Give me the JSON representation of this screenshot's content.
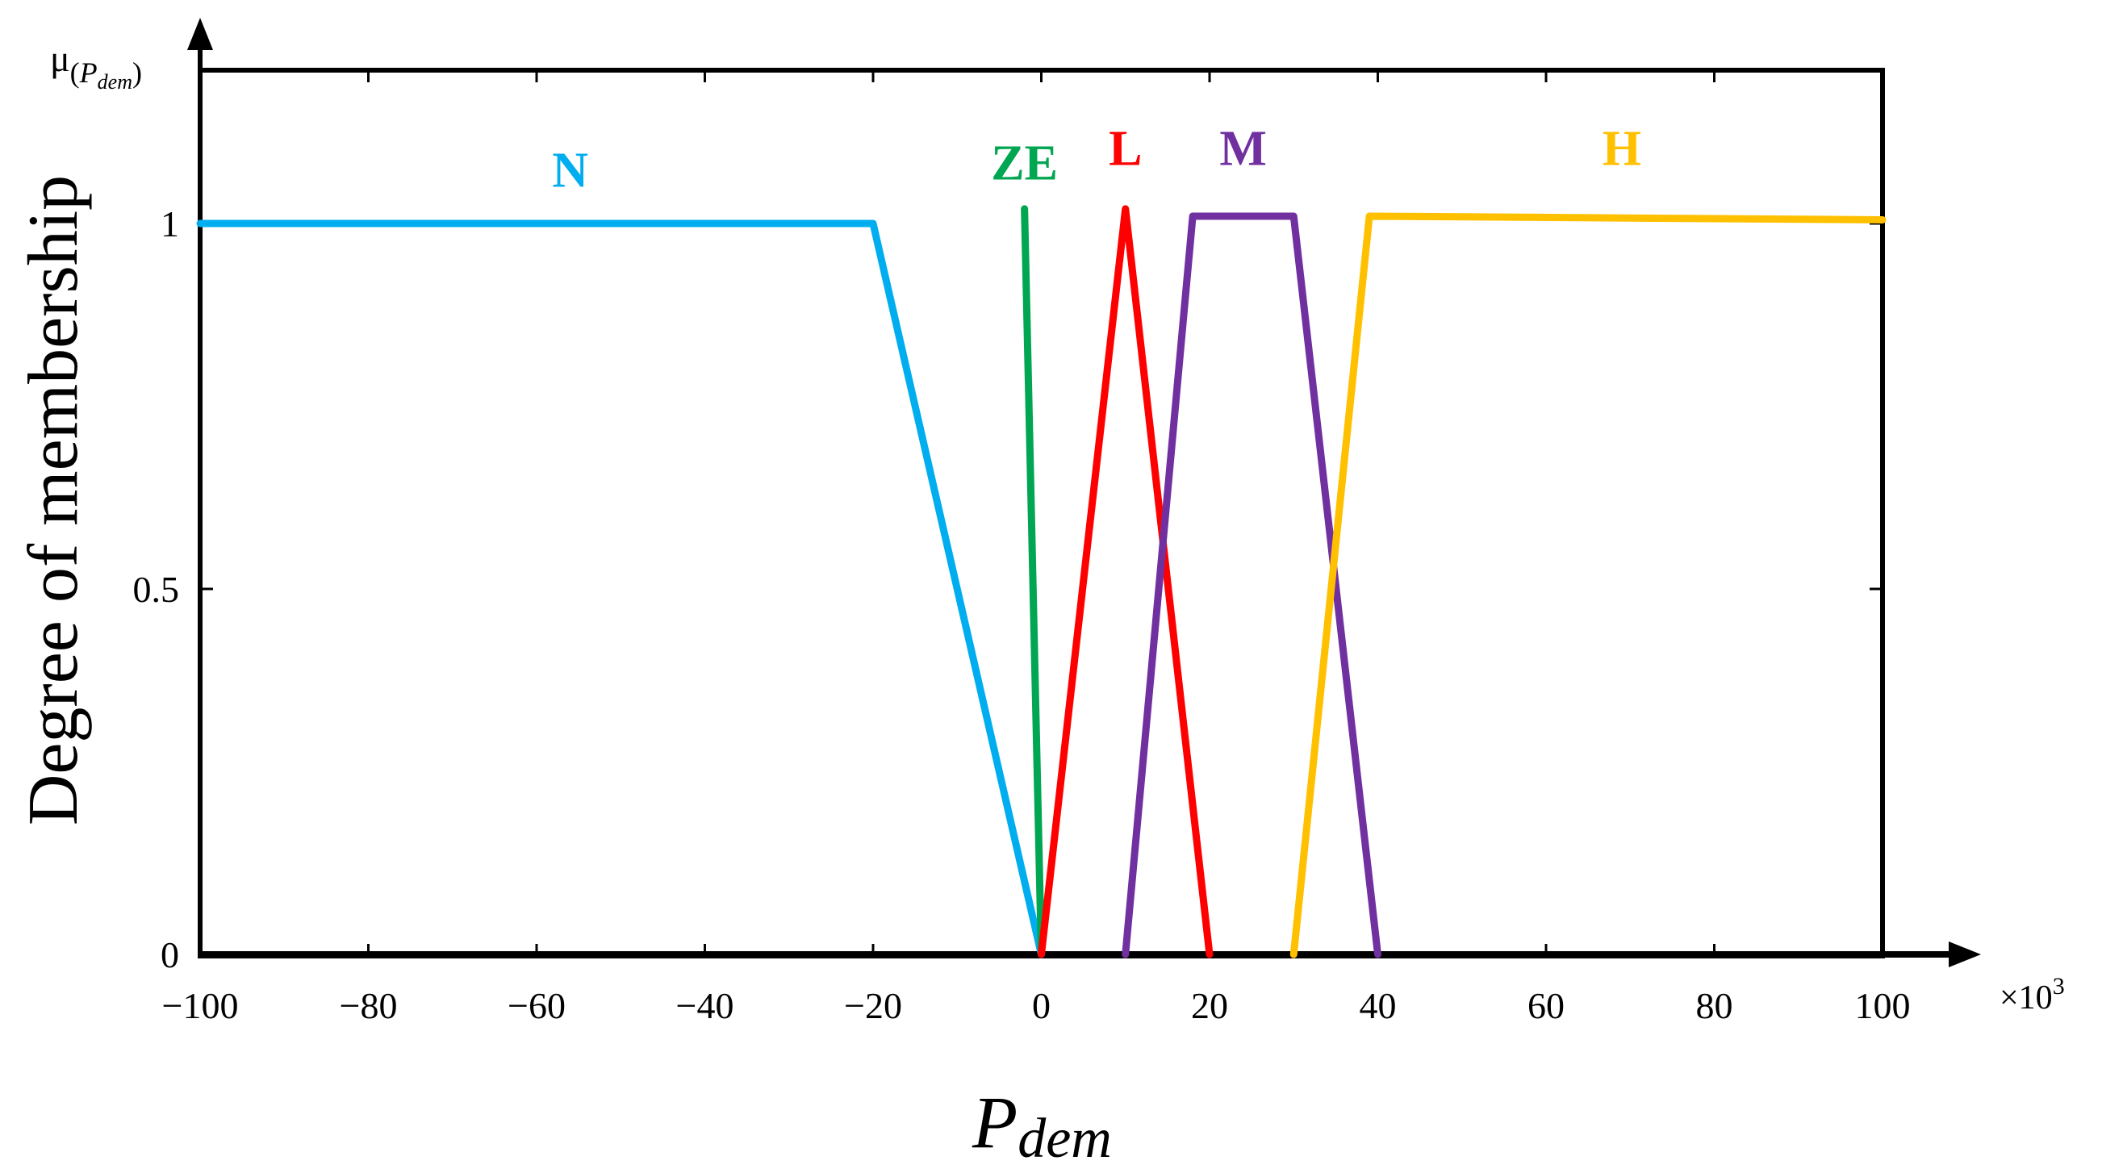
{
  "chart_data": {
    "type": "line",
    "title": "",
    "xlabel_base": "P",
    "xlabel_sub": "dem",
    "ylabel": "Degree of membership",
    "ylabel_top_mu": "μ",
    "ylabel_top_sub_open": "(",
    "ylabel_top_sub_p": "P",
    "ylabel_top_sub_dem": "dem",
    "ylabel_top_sub_close": ")",
    "x_multiplier_base": "×10",
    "x_multiplier_exp": "3",
    "xlim": [
      -100,
      100
    ],
    "ylim": [
      0,
      1
    ],
    "x_ticks": [
      -100,
      -80,
      -60,
      -40,
      -20,
      0,
      20,
      40,
      60,
      80,
      100
    ],
    "x_tick_labels": [
      "−100",
      "−80",
      "−60",
      "−40",
      "−20",
      "0",
      "20",
      "40",
      "60",
      "80",
      "100"
    ],
    "y_ticks": [
      0,
      0.5,
      1
    ],
    "y_tick_labels": [
      "0",
      "0.5",
      "1"
    ],
    "grid": false,
    "series": [
      {
        "name": "N",
        "color": "#00AEEF",
        "x": [
          -100,
          -20,
          0
        ],
        "y": [
          1,
          1,
          0
        ],
        "label_at": [
          -56,
          1.05
        ]
      },
      {
        "name": "ZE",
        "color": "#00A651",
        "x": [
          -2,
          0
        ],
        "y": [
          1.02,
          0
        ],
        "label_at": [
          -2,
          1.06
        ]
      },
      {
        "name": "L",
        "color": "#FF0000",
        "x": [
          0,
          10,
          20
        ],
        "y": [
          0,
          1.02,
          0
        ],
        "label_at": [
          10,
          1.08
        ]
      },
      {
        "name": "M",
        "color": "#7030A0",
        "x": [
          10,
          18,
          30,
          40
        ],
        "y": [
          0,
          1.01,
          1.01,
          0
        ],
        "label_at": [
          24,
          1.08
        ]
      },
      {
        "name": "H",
        "color": "#FFC000",
        "x": [
          30,
          39,
          100
        ],
        "y": [
          0,
          1.01,
          1.005
        ],
        "label_at": [
          69,
          1.08
        ]
      }
    ]
  }
}
